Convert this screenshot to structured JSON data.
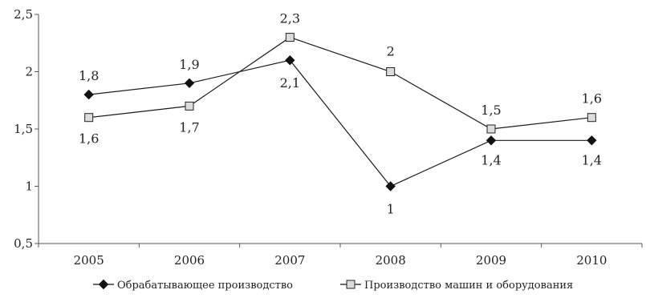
{
  "chart_data": {
    "type": "line",
    "categories": [
      "2005",
      "2006",
      "2007",
      "2008",
      "2009",
      "2010"
    ],
    "ylim": [
      0.5,
      2.5
    ],
    "yticks": [
      "0,5",
      "1",
      "1,5",
      "2",
      "2,5"
    ],
    "yticks_values": [
      0.5,
      1,
      1.5,
      2,
      2.5
    ],
    "grid": false,
    "legend_position": "bottom",
    "series": [
      {
        "name": "Обрабатывающее производство",
        "marker": "diamond",
        "color": "#1a1a1a",
        "values": [
          1.8,
          1.9,
          2.1,
          1.0,
          1.4,
          1.4
        ],
        "labels": [
          "1,8",
          "1,9",
          "2,1",
          "1",
          "1,4",
          "1,4"
        ]
      },
      {
        "name": "Производство машин и оборудования",
        "marker": "square",
        "color": "#1a1a1a",
        "values": [
          1.6,
          1.7,
          2.3,
          2.0,
          1.5,
          1.6
        ],
        "labels": [
          "1,6",
          "1,7",
          "2,3",
          "2",
          "1,5",
          "1,6"
        ]
      }
    ]
  }
}
